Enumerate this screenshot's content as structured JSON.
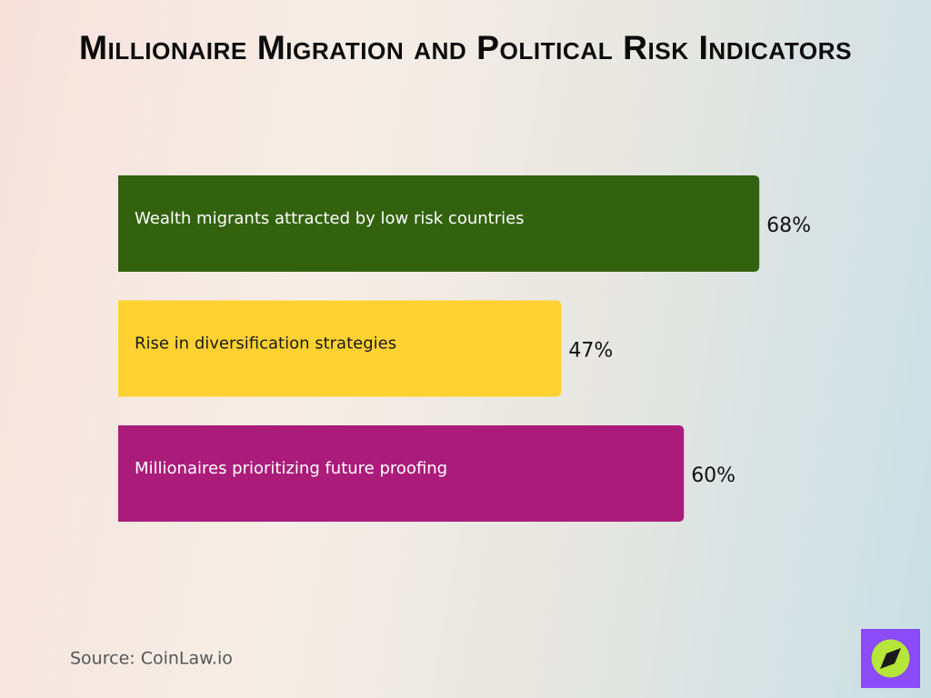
{
  "chart_data": {
    "type": "bar",
    "orientation": "horizontal",
    "title": "Millionaire Migration and Political Risk Indicators",
    "categories": [
      "Wealth migrants attracted by low risk countries",
      "Rise in diversification strategies",
      "Millionaires prioritizing future proofing"
    ],
    "values": [
      68,
      47,
      60
    ],
    "value_labels": [
      "68%",
      "47%",
      "60%"
    ],
    "colors": [
      "#33620f",
      "#ffd232",
      "#ab1c7a"
    ],
    "source": "Source: CoinLaw.io"
  }
}
